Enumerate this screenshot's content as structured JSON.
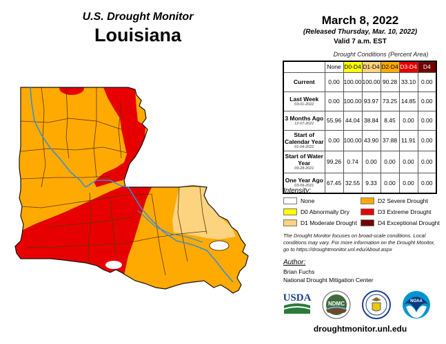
{
  "header": {
    "subtitle": "U.S. Drought Monitor",
    "state": "Louisiana"
  },
  "date": {
    "map_date": "March 8, 2022",
    "released": "(Released Thursday, Mar. 10, 2022)",
    "valid": "Valid 7 a.m. EST"
  },
  "table": {
    "caption": "Drought Conditions (Percent Area)",
    "columns": [
      {
        "label": "None",
        "bg": "#ffffff",
        "color": "#000000"
      },
      {
        "label": "D0-D4",
        "bg": "#ffff00",
        "color": "#000000"
      },
      {
        "label": "D1-D4",
        "bg": "#fcd37f",
        "color": "#000000"
      },
      {
        "label": "D2-D4",
        "bg": "#ffaa00",
        "color": "#000000"
      },
      {
        "label": "D3-D4",
        "bg": "#e60000",
        "color": "#ffffff"
      },
      {
        "label": "D4",
        "bg": "#730000",
        "color": "#ffffff"
      }
    ],
    "rows": [
      {
        "label": "Current",
        "date": "",
        "values": [
          "0.00",
          "100.00",
          "100.00",
          "90.28",
          "33.10",
          "0.00"
        ]
      },
      {
        "label": "Last Week",
        "date": "03-01-2022",
        "values": [
          "0.00",
          "100.00",
          "93.97",
          "73.25",
          "14.85",
          "0.00"
        ]
      },
      {
        "label": "3 Months Ago",
        "date": "12-07-2021",
        "values": [
          "55.96",
          "44.04",
          "38.84",
          "8.45",
          "0.00",
          "0.00"
        ]
      },
      {
        "label": "Start of Calendar Year",
        "date": "01-04-2022",
        "values": [
          "0.00",
          "100.00",
          "43.90",
          "37.88",
          "11.91",
          "0.00"
        ]
      },
      {
        "label": "Start of Water Year",
        "date": "09-28-2021",
        "values": [
          "99.26",
          "0.74",
          "0.00",
          "0.00",
          "0.00",
          "0.00"
        ]
      },
      {
        "label": "One Year Ago",
        "date": "03-09-2021",
        "values": [
          "67.45",
          "32.55",
          "9.33",
          "0.00",
          "0.00",
          "0.00"
        ]
      }
    ]
  },
  "legend": {
    "title": "Intensity:",
    "items": [
      {
        "label": "None",
        "color": "#ffffff"
      },
      {
        "label": "D0 Abnormally Dry",
        "color": "#ffff00"
      },
      {
        "label": "D1 Moderate Drought",
        "color": "#fcd37f"
      },
      {
        "label": "D2 Severe Drought",
        "color": "#ffaa00"
      },
      {
        "label": "D3 Extreme Drought",
        "color": "#e60000"
      },
      {
        "label": "D4 Exceptional Drought",
        "color": "#730000"
      }
    ]
  },
  "note": "The Drought Monitor focuses on broad-scale conditions. Local conditions may vary. For more information on the Drought Monitor, go to https://droughtmonitor.unl.edu/About.aspx",
  "author": {
    "title": "Author:",
    "name": "Brian Fuchs",
    "org": "National Drought Mitigation Center"
  },
  "logos": {
    "usda": "USDA",
    "ndmc": "NDMC",
    "noaa": "NOAA"
  },
  "website": "droughtmonitor.unl.edu",
  "map": {
    "colors": {
      "d1": "#fcd37f",
      "d2": "#ffaa00",
      "d3": "#e60000",
      "river": "#3a8fd0",
      "border": "#4a2a00"
    }
  }
}
